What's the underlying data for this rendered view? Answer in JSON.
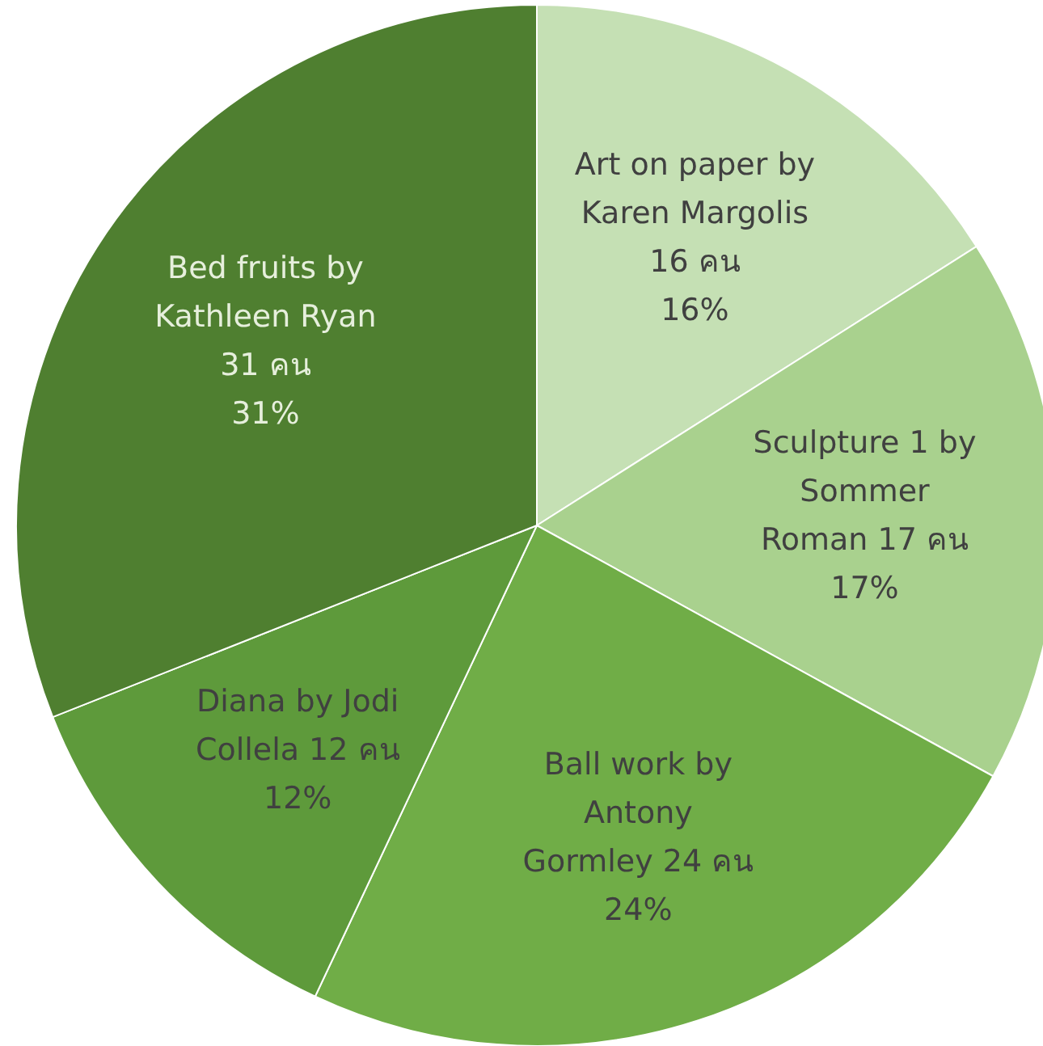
{
  "chart_data": {
    "type": "pie",
    "categories": [
      "Art on paper by Karen Margolis 16 คน",
      "Sculpture 1 by Sommer Roman 17 คน",
      "Ball work by Antony Gormley 24 คน",
      "Diana by Jodi Collela 12 คน",
      "Bed fruits by Kathleen Ryan 31 คน"
    ],
    "values": [
      16,
      17,
      24,
      12,
      31
    ],
    "value_labels": [
      "16%",
      "17%",
      "24%",
      "12%",
      "31%"
    ],
    "colors": [
      "#c5e0b4",
      "#a9d18e",
      "#70ad47",
      "#5e9a3b",
      "#4f7f30"
    ]
  }
}
